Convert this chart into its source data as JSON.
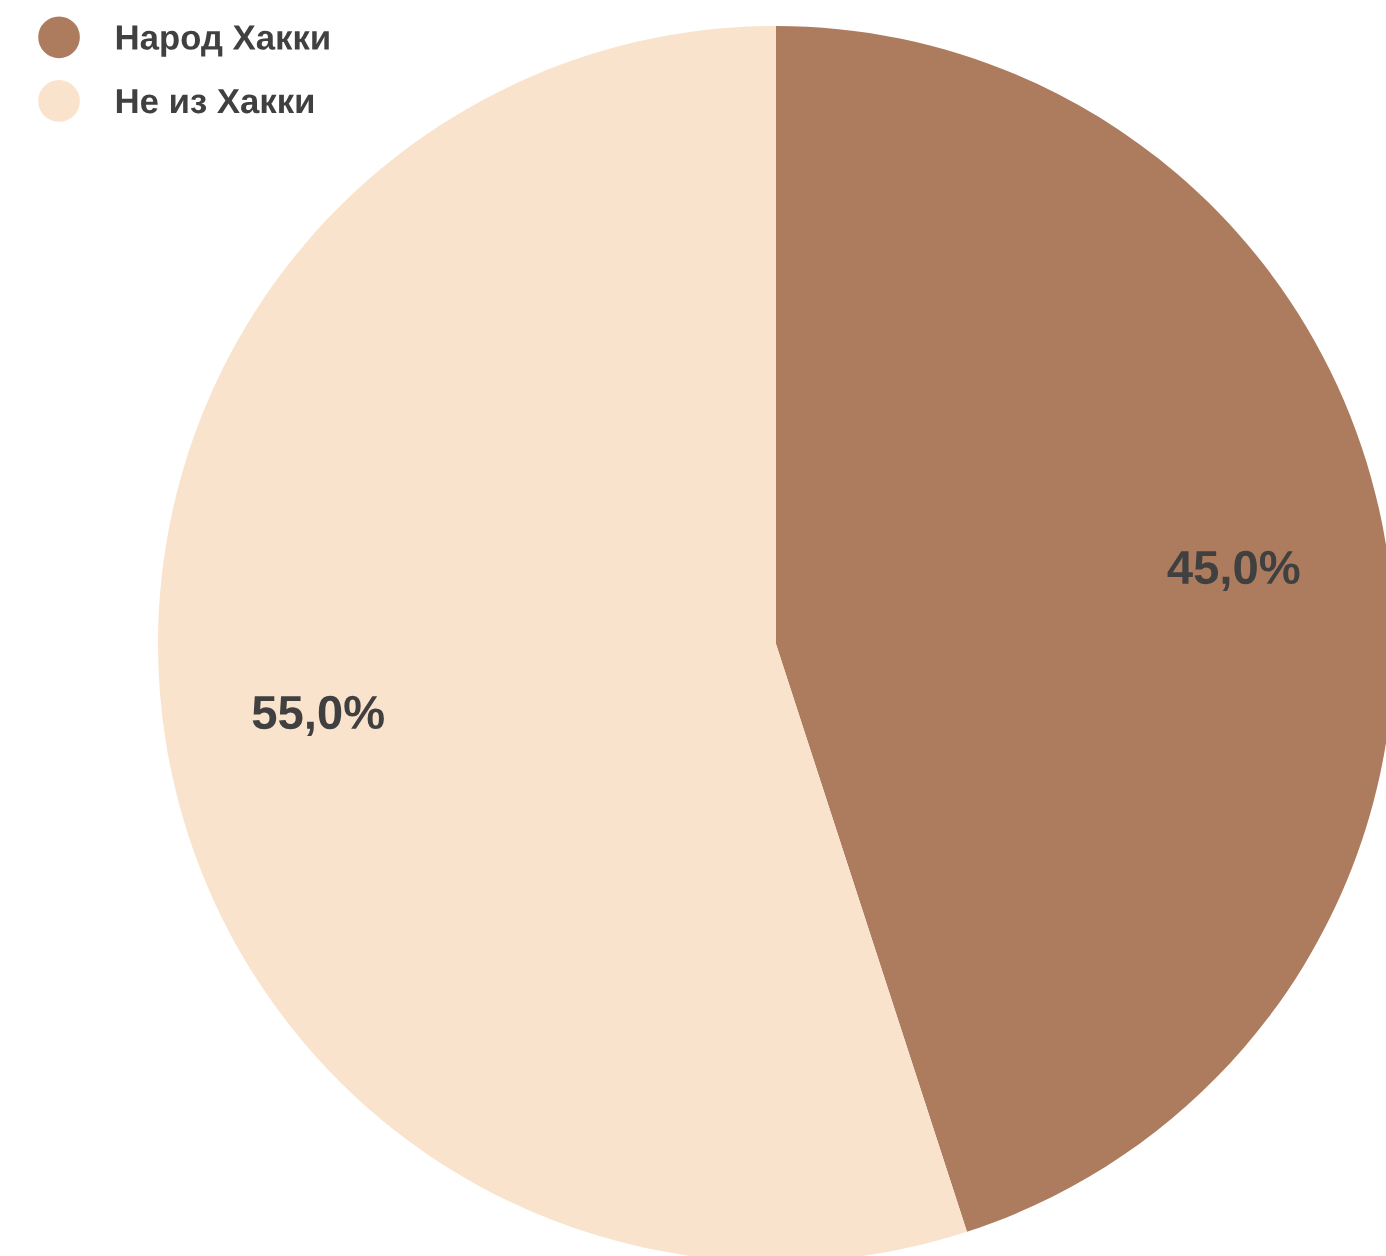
{
  "chart_data": {
    "type": "pie",
    "categories": [
      "Народ Хакки",
      "Не из Хакки"
    ],
    "values": [
      45.0,
      55.0
    ],
    "colors": [
      "#ad7c5e",
      "#fae3cc"
    ],
    "value_labels": [
      "45,0%",
      "55,0%"
    ],
    "legend": "top left"
  }
}
